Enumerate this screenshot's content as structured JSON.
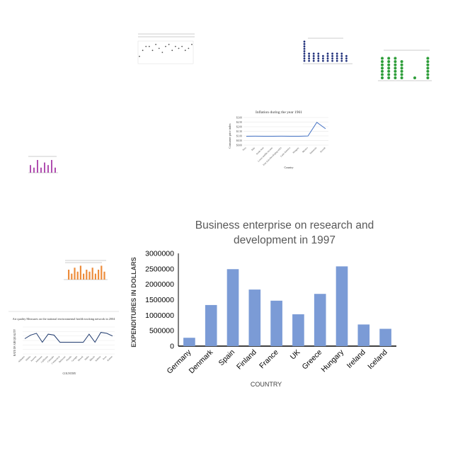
{
  "main_chart": {
    "title_line1": "Business enterprise on research and",
    "title_line2": "development in 1997",
    "ylabel": "EXPENDITURES IN DOLLARS",
    "xlabel": "COUNTRY"
  },
  "chart_data": [
    {
      "type": "bar",
      "title": "Business enterprise on research and development in 1997",
      "xlabel": "COUNTRY",
      "ylabel": "EXPENDITURES IN DOLLARS",
      "categories": [
        "Germany",
        "Denmark",
        "Spain",
        "Finland",
        "France",
        "UK",
        "Greece",
        "Hungary",
        "Ireland",
        "Iceland"
      ],
      "values": [
        270000,
        1330000,
        2490000,
        1830000,
        1470000,
        1030000,
        1690000,
        2580000,
        700000,
        560000
      ],
      "ylim": [
        0,
        3000000
      ],
      "yticks": [
        0,
        500000,
        1000000,
        1500000,
        2000000,
        2500000,
        3000000
      ],
      "colors": {
        "bar": "#7b9bd6",
        "axis": "#000000"
      },
      "grid": false,
      "legend": "none"
    },
    {
      "type": "line",
      "title": "Inflation during the year 1961",
      "xlabel": "Country",
      "ylabel": "Consumer price index",
      "x": [
        "Peru",
        "Italy",
        "South Asia",
        "Lower middle income",
        "East Asia (developing only)",
        "Latin America",
        "Hungary",
        "Mexico",
        "Indonesia",
        "Kuwait"
      ],
      "values": [
        0.96,
        0.97,
        0.96,
        0.96,
        0.97,
        0.96,
        0.96,
        0.99,
        2.48,
        1.78
      ],
      "ylim": [
        0,
        3
      ],
      "yticks_labels": [
        "$0.00",
        "$0.50",
        "$1.00",
        "$1.50",
        "$2.00",
        "$2.50",
        "$3.00"
      ],
      "colors": {
        "line": "#4472c4"
      }
    },
    {
      "type": "line",
      "title": "Air quality Measures on the national environmental health tracking network in 2004",
      "xlabel": "COUNTRY",
      "ylabel": "RATE OF AIR QUALITY",
      "x": [
        "Alabama",
        "Alaska",
        "Arizona",
        "Arkansas",
        "California",
        "Colorado",
        "Connecticut",
        "Delaware",
        "Florida",
        "Georgia",
        "Hawaii",
        "Idaho",
        "Illinois",
        "Indiana",
        "Iowa",
        "Kansas"
      ],
      "values": [
        17,
        21,
        23,
        13,
        22,
        21,
        13,
        13,
        13,
        13,
        13,
        22,
        13,
        24,
        23,
        20
      ],
      "ylim": [
        0,
        30
      ],
      "colors": {
        "line": "#1f3a6e"
      }
    },
    {
      "type": "scatter",
      "title": "Percentage of people getting ill from not using the vaccine in Angola 1976",
      "x": [
        1,
        2,
        3,
        4,
        5,
        6,
        7,
        8,
        9,
        10,
        11,
        12,
        13,
        14,
        15,
        16,
        17
      ],
      "values": [
        3,
        6,
        8,
        8,
        6,
        9,
        7,
        5,
        8,
        9,
        6,
        8,
        7,
        8,
        6,
        7,
        9
      ],
      "colors": {
        "marker": "#555555"
      }
    },
    {
      "type": "scatter",
      "title": "Rank distribution",
      "values": [
        9,
        4,
        4,
        4,
        3,
        4,
        4,
        4,
        4,
        3
      ],
      "colors": {
        "marker": "#1f2f7a"
      }
    },
    {
      "type": "scatter",
      "title": "Number of days with alarming levels",
      "values": [
        7,
        7,
        7,
        6,
        0,
        1,
        0,
        7
      ],
      "colors": {
        "marker": "#2e9e3a"
      }
    },
    {
      "type": "bar",
      "title": "Distribution",
      "values": [
        3,
        2,
        5,
        2,
        4,
        3,
        5,
        2
      ],
      "colors": {
        "bar": "#b04fb0"
      }
    },
    {
      "type": "bar",
      "title": "Distribution",
      "values": [
        5,
        3,
        6,
        4,
        7,
        3,
        5,
        4,
        6,
        3,
        5,
        7,
        4
      ],
      "colors": {
        "bar": "#ed8c3b"
      }
    }
  ]
}
